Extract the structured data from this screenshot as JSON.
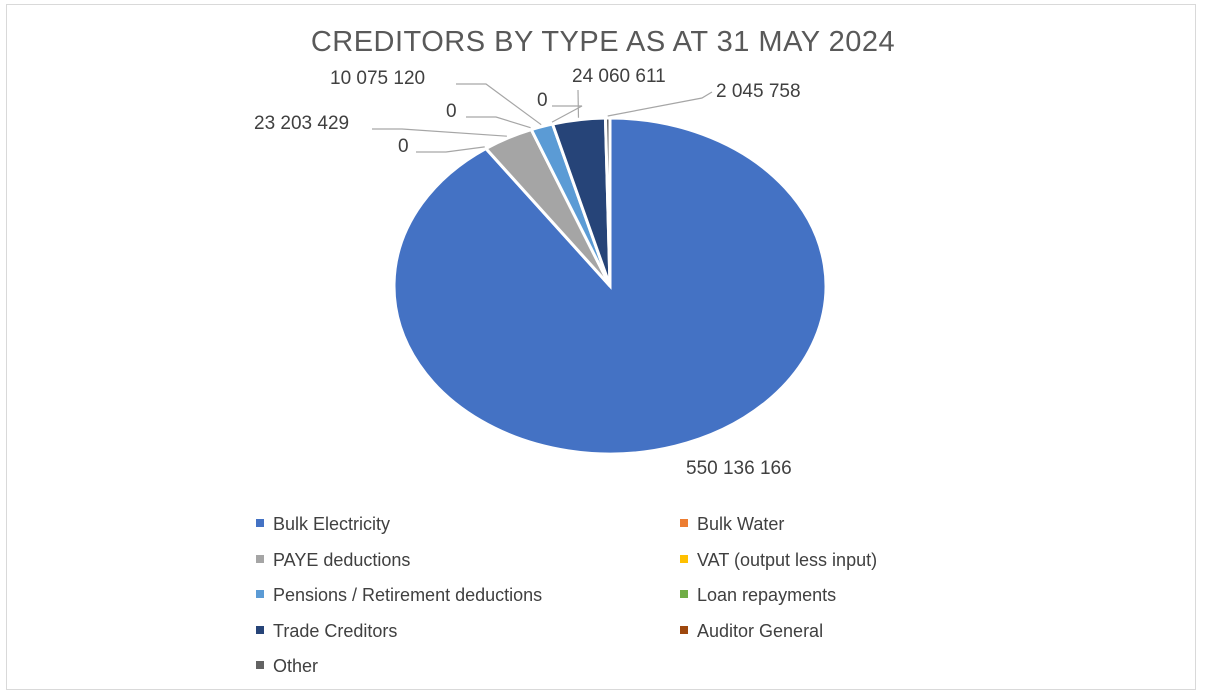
{
  "chart_data": {
    "type": "pie",
    "title": "CREDITORS BY TYPE AS AT 31 MAY 2024",
    "categories": [
      "Bulk Electricity",
      "Bulk Water",
      "PAYE deductions",
      "VAT (output less input)",
      "Pensions / Retirement deductions",
      "Loan repayments",
      "Trade Creditors",
      "Auditor General",
      "Other"
    ],
    "values": [
      550136166,
      0,
      23203429,
      0,
      10075120,
      0,
      24060611,
      0,
      2045758
    ],
    "data_labels": [
      "550 136 166",
      "0",
      "23 203 429",
      "0",
      "10 075 120",
      "0",
      "24 060 611",
      "0",
      "2 045 758"
    ],
    "colors": [
      "#4472c4",
      "#ed7d31",
      "#a5a5a5",
      "#ffc000",
      "#5b9bd5",
      "#70ad47",
      "#264478",
      "#9e480e",
      "#636363"
    ],
    "legend_position": "bottom"
  }
}
